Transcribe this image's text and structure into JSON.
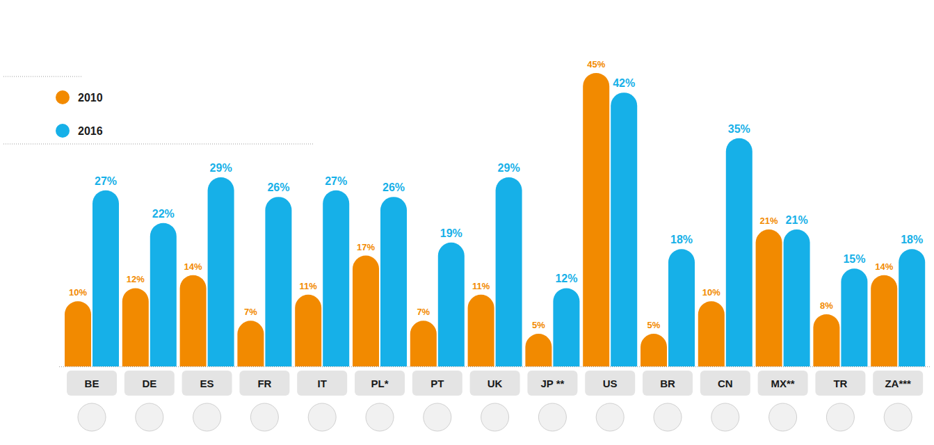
{
  "chart_data": {
    "type": "bar",
    "categories": [
      "BE",
      "DE",
      "ES",
      "FR",
      "IT",
      "PL*",
      "PT",
      "UK",
      "JP **",
      "US",
      "BR",
      "CN",
      "MX**",
      "TR",
      "ZA***"
    ],
    "series": [
      {
        "name": "2010",
        "color": "#f28a00",
        "values": [
          10,
          12,
          14,
          7,
          11,
          17,
          7,
          11,
          5,
          45,
          5,
          10,
          21,
          8,
          14
        ],
        "value_labels": [
          "10%",
          "12%",
          "14%",
          "7%",
          "11%",
          "17%",
          "7%",
          "11%",
          "5%",
          "45%",
          "5%",
          "10%",
          "21%",
          "8%",
          "14%"
        ]
      },
      {
        "name": "2016",
        "color": "#16b0e8",
        "values": [
          27,
          22,
          29,
          26,
          27,
          26,
          19,
          29,
          12,
          42,
          18,
          35,
          21,
          15,
          18
        ],
        "value_labels": [
          "27%",
          "22%",
          "29%",
          "26%",
          "27%",
          "26%",
          "19%",
          "29%",
          "12%",
          "42%",
          "18%",
          "35%",
          "21%",
          "15%",
          "18%"
        ]
      }
    ],
    "ylim": [
      0,
      45
    ],
    "tick_labels": false,
    "data_labels": true,
    "legend": "top-left",
    "grid": false
  }
}
